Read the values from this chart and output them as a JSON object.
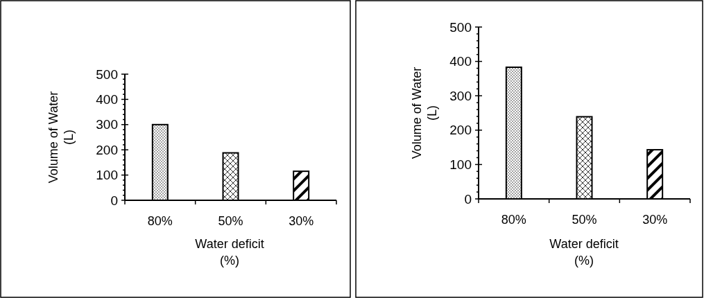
{
  "chart_data": [
    {
      "type": "bar",
      "categories": [
        "80%",
        "50%",
        "30%"
      ],
      "values": [
        300,
        188,
        115
      ],
      "colors": [
        "#000000",
        "#000000",
        "#000000"
      ],
      "xlabel": "Water deficit\n(%)",
      "ylabel": "Volume of Water\n(L)",
      "ylim": [
        0,
        500
      ],
      "yticks": [
        0,
        {
          "value": 20,
          "label": null
        },
        {
          "value": 40,
          "label": null
        },
        {
          "value": 60,
          "label": null
        },
        {
          "value": 80,
          "label": null
        },
        100,
        {
          "value": 120,
          "label": null
        },
        {
          "value": 140,
          "label": null
        },
        {
          "value": 160,
          "label": null
        },
        {
          "value": 180,
          "label": null
        },
        200,
        {
          "value": 220,
          "label": null
        },
        {
          "value": 240,
          "label": null
        },
        {
          "value": 260,
          "label": null
        },
        {
          "value": 280,
          "label": null
        },
        300,
        {
          "value": 320,
          "label": null
        },
        {
          "value": 340,
          "label": null
        },
        {
          "value": 360,
          "label": null
        },
        {
          "value": 380,
          "label": null
        },
        400,
        {
          "value": 420,
          "label": null
        },
        {
          "value": 440,
          "label": null
        },
        {
          "value": 460,
          "label": null
        },
        {
          "value": 480,
          "label": null
        },
        500
      ],
      "grid": false
    },
    {
      "type": "bar",
      "categories": [
        "80%",
        "50%",
        "30%"
      ],
      "values": [
        383,
        239,
        143
      ],
      "colors": [
        "#000000",
        "#000000",
        "#000000"
      ],
      "xlabel": "Water deficit\n(%)",
      "ylabel": "Volume of Water\n(L)",
      "ylim": [
        0,
        500
      ],
      "yticks": [
        0,
        {
          "value": 20,
          "label": null
        },
        {
          "value": 40,
          "label": null
        },
        {
          "value": 60,
          "label": null
        },
        {
          "value": 80,
          "label": null
        },
        100,
        {
          "value": 120,
          "label": null
        },
        {
          "value": 140,
          "label": null
        },
        {
          "value": 160,
          "label": null
        },
        {
          "value": 180,
          "label": null
        },
        200,
        {
          "value": 220,
          "label": null
        },
        {
          "value": 240,
          "label": null
        },
        {
          "value": 260,
          "label": null
        },
        {
          "value": 280,
          "label": null
        },
        300,
        {
          "value": 320,
          "label": null
        },
        {
          "value": 340,
          "label": null
        },
        {
          "value": 360,
          "label": null
        },
        {
          "value": 380,
          "label": null
        },
        400,
        {
          "value": 420,
          "label": null
        },
        {
          "value": 440,
          "label": null
        },
        {
          "value": 460,
          "label": null
        },
        {
          "value": 480,
          "label": null
        },
        500
      ],
      "grid": false
    }
  ]
}
